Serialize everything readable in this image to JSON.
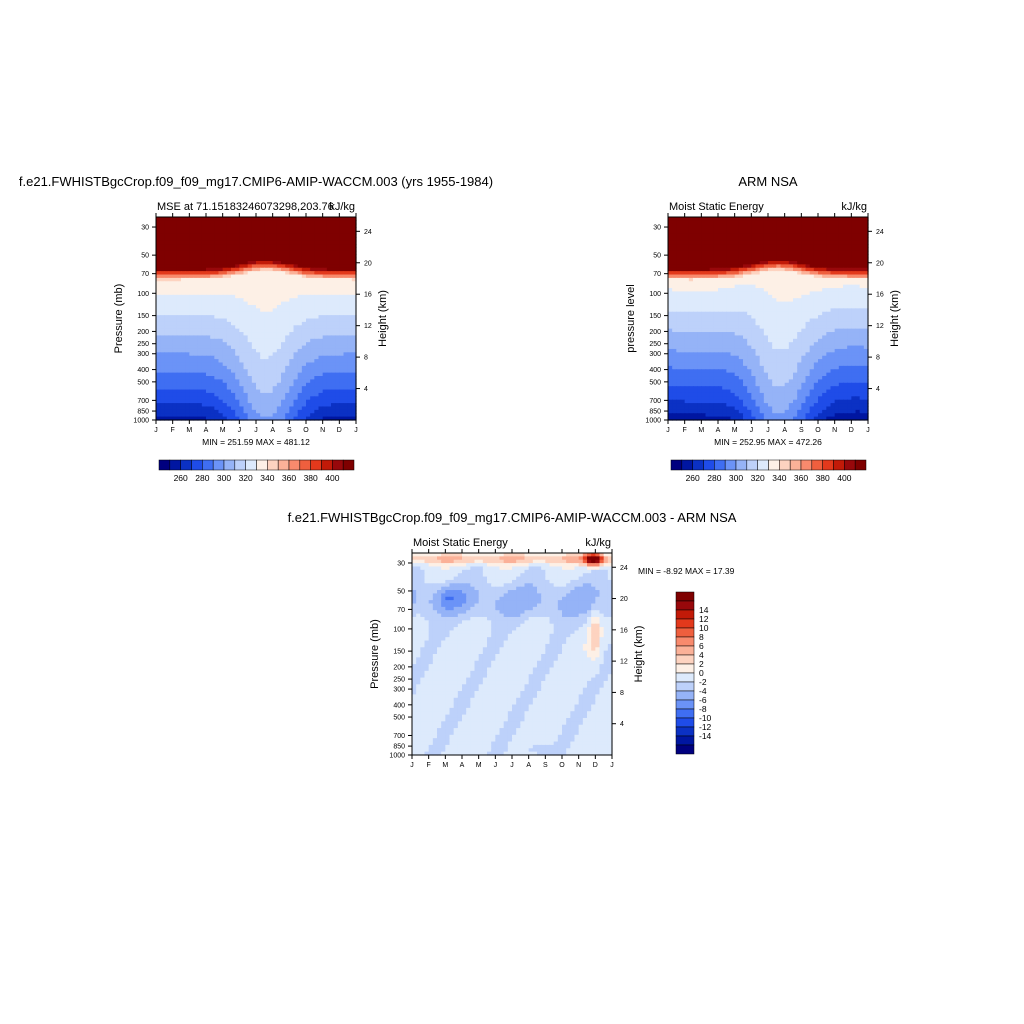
{
  "colors": {
    "palette": [
      "#00007f",
      "#0016a1",
      "#0b31c4",
      "#1f4ce8",
      "#3f6ef2",
      "#6b93f7",
      "#95b3f7",
      "#bdd1fa",
      "#ddeafc",
      "#fdf0e6",
      "#fdd3c0",
      "#fbb198",
      "#f88a6d",
      "#ef5f3e",
      "#e3391c",
      "#c21a08",
      "#98080b",
      "#7f0000"
    ]
  },
  "chart_data": [
    {
      "type": "heatmap",
      "title": "f.e21.FWHISTBgcCrop.f09_f09_mg17.CMIP6-AMIP-WACCM.003 (yrs 1955-1984)",
      "subtitle_left": "MSE at 71.15183246073298,203.76",
      "subtitle_right": "kJ/kg",
      "ylabel": "Pressure (mb)",
      "ylabel_right": "Height (km)",
      "x_ticks": [
        "J",
        "F",
        "M",
        "A",
        "M",
        "J",
        "J",
        "A",
        "S",
        "O",
        "N",
        "D",
        "J"
      ],
      "y_ticks": [
        30,
        50,
        70,
        100,
        150,
        200,
        250,
        300,
        400,
        500,
        700,
        850,
        1000
      ],
      "y_right_ticks": [
        24,
        20,
        16,
        12,
        8,
        4
      ],
      "ylim": [
        1000,
        25
      ],
      "stats": "MIN = 251.59  MAX = 481.12",
      "colorbar_labels": [
        "260",
        "280",
        "300",
        "320",
        "340",
        "360",
        "380",
        "400"
      ]
    },
    {
      "type": "heatmap",
      "title": "ARM NSA",
      "subtitle_left": "Moist Static Energy",
      "subtitle_right": "kJ/kg",
      "ylabel": "pressure level",
      "ylabel_right": "Height (km)",
      "x_ticks": [
        "J",
        "F",
        "M",
        "A",
        "M",
        "J",
        "J",
        "A",
        "S",
        "O",
        "N",
        "D",
        "J"
      ],
      "y_ticks": [
        30,
        50,
        70,
        100,
        150,
        200,
        250,
        300,
        400,
        500,
        700,
        850,
        1000
      ],
      "y_right_ticks": [
        24,
        20,
        16,
        12,
        8,
        4
      ],
      "ylim": [
        1000,
        25
      ],
      "stats": "MIN = 252.95  MAX = 472.26",
      "colorbar_labels": [
        "260",
        "280",
        "300",
        "320",
        "340",
        "360",
        "380",
        "400"
      ]
    },
    {
      "type": "heatmap",
      "title": "f.e21.FWHISTBgcCrop.f09_f09_mg17.CMIP6-AMIP-WACCM.003 - ARM NSA",
      "subtitle_left": "Moist Static Energy",
      "subtitle_right": "kJ/kg",
      "ylabel": "Pressure (mb)",
      "ylabel_right": "Height (km)",
      "x_ticks": [
        "J",
        "F",
        "M",
        "A",
        "M",
        "J",
        "J",
        "A",
        "S",
        "O",
        "N",
        "D",
        "J"
      ],
      "y_ticks": [
        30,
        50,
        70,
        100,
        150,
        200,
        250,
        300,
        400,
        500,
        700,
        850,
        1000
      ],
      "y_right_ticks": [
        24,
        20,
        16,
        12,
        8,
        4
      ],
      "ylim": [
        1000,
        25
      ],
      "stats": "MIN =  -8.92 MAX =  17.39",
      "colorbar_labels": [
        "14",
        "12",
        "10",
        "8",
        "6",
        "4",
        "2",
        "0",
        "-2",
        "-4",
        "-6",
        "-8",
        "-10",
        "-12",
        "-14"
      ]
    }
  ]
}
